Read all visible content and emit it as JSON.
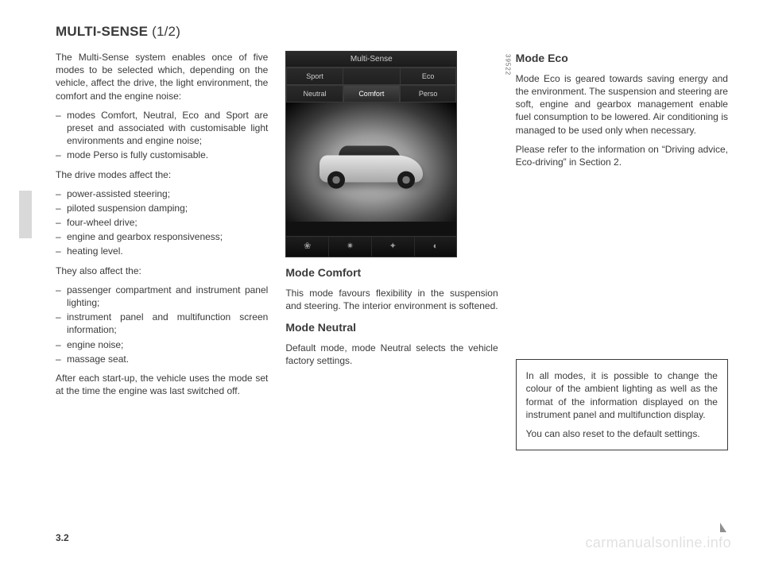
{
  "page": {
    "title_main": "MULTI-SENSE",
    "title_frac": "(1/2)",
    "page_number": "3.2",
    "watermark": "carmanualsonline.info",
    "side_image_code": "39522"
  },
  "colors": {
    "text": "#3a3a3a",
    "side_tab": "#d9d9d9",
    "device_bg": "#111111",
    "device_border": "#333333"
  },
  "left": {
    "intro": "The Multi-Sense system enables once of five modes to be selected which, depending on the vehicle, affect the drive, the light environment, the comfort and the engine noise:",
    "intro_items": [
      "modes Comfort, Neutral, Eco and Sport are preset and associated with customisable light environments and engine noise;",
      "mode Perso is fully customisable."
    ],
    "affect_lead": "The drive modes affect the:",
    "affect_items": [
      "power-assisted steering;",
      "piloted suspension damping;",
      "four-wheel drive;",
      "engine and gearbox responsiveness;",
      "heating level."
    ],
    "also_lead": "They also affect the:",
    "also_items": [
      "passenger compartment and instrument panel lighting;",
      "instrument panel and multifunction screen information;",
      "engine noise;",
      "massage seat."
    ],
    "startup": "After each start-up, the vehicle uses the mode set at the time the engine was last switched off."
  },
  "center": {
    "device_header": "Multi-Sense",
    "tabs_row1": [
      "Sport",
      "Eco"
    ],
    "tabs_row2": [
      "Neutral",
      "Comfort",
      "Perso"
    ],
    "selected_tab": "Comfort",
    "footer_icons": [
      "tree-icon",
      "fan-icon",
      "clover-icon",
      "gauge-icon"
    ],
    "mode_comfort_head": "Mode Comfort",
    "mode_comfort_body": "This mode favours flexibility in the suspension and steering. The interior environment is softened.",
    "mode_neutral_head": "Mode Neutral",
    "mode_neutral_body": "Default mode, mode Neutral selects the vehicle factory settings."
  },
  "right": {
    "mode_eco_head": "Mode Eco",
    "mode_eco_body1": "Mode Eco is geared towards saving energy and the environment. The suspension and steering are soft, engine and gearbox management enable fuel consumption to be lowered. Air conditioning is managed to be used only when necessary.",
    "mode_eco_body2": "Please refer to the information on “Driving advice, Eco-driving” in Section 2.",
    "info_p1": "In all modes, it is possible to change the colour of the ambient lighting as well as the format of the information displayed on the instrument panel and multifunction display.",
    "info_p2": "You can also reset to the default settings."
  }
}
